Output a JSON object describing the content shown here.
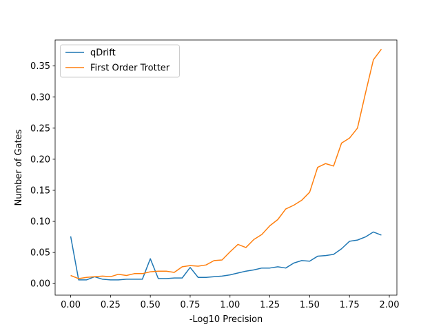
{
  "chart_data": {
    "type": "line",
    "title": "",
    "xlabel": "-Log10 Precision",
    "ylabel": "Number of Gates",
    "xlim": [
      -0.0975,
      2.0475
    ],
    "ylim": [
      -0.0186,
      0.3918
    ],
    "xticks": [
      0.0,
      0.25,
      0.5,
      0.75,
      1.0,
      1.25,
      1.5,
      1.75,
      2.0
    ],
    "xtick_labels": [
      "0.00",
      "0.25",
      "0.50",
      "0.75",
      "1.00",
      "1.25",
      "1.50",
      "1.75",
      "2.00"
    ],
    "yticks": [
      0.0,
      0.05,
      0.1,
      0.15,
      0.2,
      0.25,
      0.3,
      0.35
    ],
    "ytick_labels": [
      "0.00",
      "0.05",
      "0.10",
      "0.15",
      "0.20",
      "0.25",
      "0.30",
      "0.35"
    ],
    "grid": false,
    "legend_position": "top-left",
    "x": [
      0.0,
      0.05,
      0.1,
      0.15,
      0.2,
      0.25,
      0.3,
      0.35,
      0.4,
      0.45,
      0.5,
      0.55,
      0.6,
      0.65,
      0.7,
      0.75,
      0.8,
      0.85,
      0.9,
      0.95,
      1.0,
      1.05,
      1.1,
      1.15,
      1.2,
      1.25,
      1.3,
      1.35,
      1.4,
      1.45,
      1.5,
      1.55,
      1.6,
      1.65,
      1.7,
      1.75,
      1.8,
      1.85,
      1.9,
      1.95
    ],
    "series": [
      {
        "name": "qDrift",
        "color": "#1f77b4",
        "values": [
          0.076,
          0.006,
          0.006,
          0.011,
          0.007,
          0.006,
          0.006,
          0.007,
          0.007,
          0.007,
          0.04,
          0.008,
          0.008,
          0.009,
          0.009,
          0.026,
          0.01,
          0.01,
          0.011,
          0.012,
          0.014,
          0.017,
          0.02,
          0.022,
          0.025,
          0.025,
          0.027,
          0.025,
          0.033,
          0.037,
          0.036,
          0.044,
          0.045,
          0.047,
          0.056,
          0.068,
          0.07,
          0.075,
          0.083,
          0.078
        ]
      },
      {
        "name": "First Order Trotter",
        "color": "#ff7f0e",
        "values": [
          0.013,
          0.008,
          0.01,
          0.011,
          0.012,
          0.011,
          0.015,
          0.013,
          0.016,
          0.016,
          0.019,
          0.02,
          0.02,
          0.018,
          0.027,
          0.029,
          0.028,
          0.03,
          0.037,
          0.038,
          0.051,
          0.063,
          0.058,
          0.071,
          0.079,
          0.093,
          0.103,
          0.12,
          0.126,
          0.134,
          0.147,
          0.187,
          0.193,
          0.189,
          0.226,
          0.234,
          0.25,
          0.306,
          0.36,
          0.377
        ]
      }
    ]
  }
}
